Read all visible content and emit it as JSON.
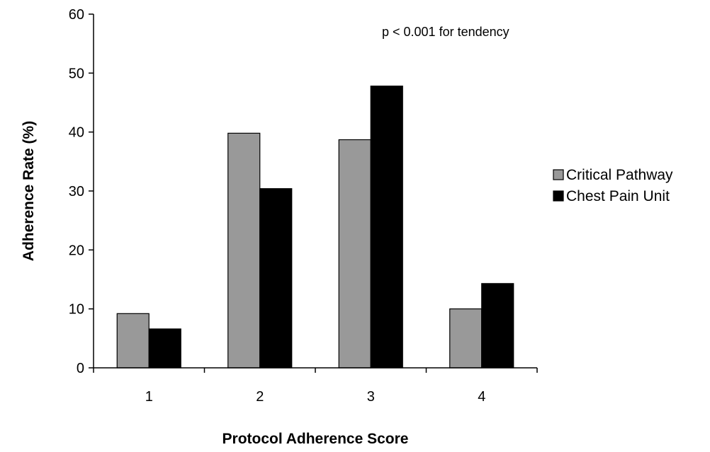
{
  "chart_data": {
    "type": "bar",
    "categories": [
      "1",
      "2",
      "3",
      "4"
    ],
    "series": [
      {
        "name": "Critical Pathway",
        "values": [
          9.2,
          39.8,
          38.7,
          10.0
        ],
        "color": "#999999"
      },
      {
        "name": "Chest Pain Unit",
        "values": [
          6.6,
          30.4,
          47.8,
          14.3
        ],
        "color": "#000000"
      }
    ],
    "xlabel": "Protocol Adherence Score",
    "ylabel": "Adherence Rate  (%)",
    "ylim": [
      0,
      60
    ],
    "yticks": [
      0,
      10,
      20,
      30,
      40,
      50,
      60
    ],
    "annotation": "p < 0.001 for tendency",
    "legend_position": "right",
    "grid": false
  }
}
